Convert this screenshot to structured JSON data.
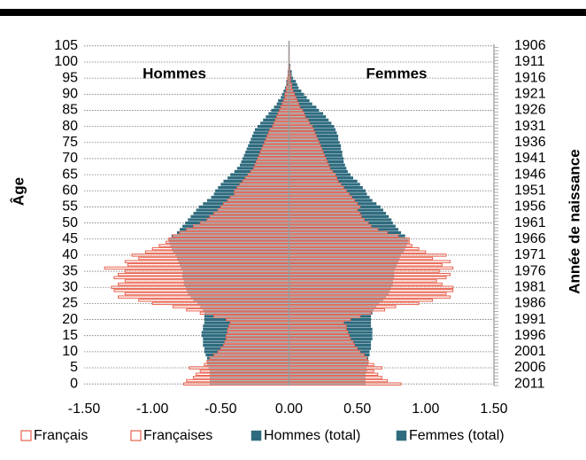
{
  "chart_data": {
    "type": "pyramid",
    "annotations": [
      "Hommes",
      "Femmes"
    ],
    "ylabel": "Âge",
    "y2label": "Année de naissance",
    "categories": [
      "0",
      null,
      null,
      null,
      null,
      "5",
      null,
      null,
      null,
      null,
      "10",
      null,
      null,
      null,
      null,
      "15",
      null,
      null,
      null,
      null,
      "20",
      null,
      null,
      null,
      null,
      "25",
      null,
      null,
      null,
      null,
      "30",
      null,
      null,
      null,
      null,
      "35",
      null,
      null,
      null,
      null,
      "40",
      null,
      null,
      null,
      null,
      "45",
      null,
      null,
      null,
      null,
      "50",
      null,
      null,
      null,
      null,
      "55",
      null,
      null,
      null,
      null,
      "60",
      null,
      null,
      null,
      null,
      "65",
      null,
      null,
      null,
      null,
      "70",
      null,
      null,
      null,
      null,
      "75",
      null,
      null,
      null,
      null,
      "80",
      null,
      null,
      null,
      null,
      "85",
      null,
      null,
      null,
      null,
      "90",
      null,
      null,
      null,
      null,
      "95",
      null,
      null,
      null,
      null,
      "100",
      null,
      null,
      null,
      null,
      "105"
    ],
    "birth_years": [
      "2011",
      null,
      null,
      null,
      null,
      "2006",
      null,
      null,
      null,
      null,
      "2001",
      null,
      null,
      null,
      null,
      "1996",
      null,
      null,
      null,
      null,
      "1991",
      null,
      null,
      null,
      null,
      "1986",
      null,
      null,
      null,
      null,
      "1981",
      null,
      null,
      null,
      null,
      "1976",
      null,
      null,
      null,
      null,
      "1971",
      null,
      null,
      null,
      null,
      "1966",
      null,
      null,
      null,
      null,
      "1961",
      null,
      null,
      null,
      null,
      "1956",
      null,
      null,
      null,
      null,
      "1951",
      null,
      null,
      null,
      null,
      "1946",
      null,
      null,
      null,
      null,
      "1941",
      null,
      null,
      null,
      null,
      "1936",
      null,
      null,
      null,
      null,
      "1931",
      null,
      null,
      null,
      null,
      "1926",
      null,
      null,
      null,
      null,
      "1921",
      null,
      null,
      null,
      null,
      "1916",
      null,
      null,
      null,
      null,
      "1911",
      null,
      null,
      null,
      null,
      "1906"
    ],
    "xlim": [
      -1.5,
      1.5
    ],
    "xticks": [
      {
        "value": -1.5,
        "label": "-1.50"
      },
      {
        "value": -1,
        "label": "-1.00"
      },
      {
        "value": -0.5,
        "label": "-0.50"
      },
      {
        "value": 0,
        "label": "0.00"
      },
      {
        "value": 0.5,
        "label": "0.50"
      },
      {
        "value": 1,
        "label": "1.00"
      },
      {
        "value": 1.5,
        "label": "1.50"
      }
    ],
    "grid": true,
    "legend": "bottom",
    "series": [
      {
        "name": "Français",
        "color": "#e8604c",
        "outline": true,
        "values": [
          -0.77,
          -0.75,
          -0.7,
          -0.68,
          -0.65,
          -0.73,
          -0.62,
          -0.6,
          -0.58,
          -0.55,
          -0.52,
          -0.5,
          -0.48,
          -0.47,
          -0.46,
          -0.46,
          -0.45,
          -0.45,
          -0.44,
          -0.43,
          -0.46,
          -0.55,
          -0.65,
          -0.75,
          -0.85,
          -1.0,
          -1.1,
          -1.25,
          -1.2,
          -1.28,
          -1.3,
          -1.25,
          -1.2,
          -1.28,
          -1.25,
          -1.2,
          -1.35,
          -1.18,
          -1.2,
          -1.1,
          -1.15,
          -1.05,
          -1.0,
          -0.95,
          -0.9,
          -0.88,
          -0.85,
          -0.8,
          -0.75,
          -0.7,
          -0.65,
          -0.6,
          -0.58,
          -0.55,
          -0.52,
          -0.5,
          -0.48,
          -0.45,
          -0.43,
          -0.4,
          -0.4,
          -0.38,
          -0.36,
          -0.34,
          -0.32,
          -0.3,
          -0.28,
          -0.26,
          -0.25,
          -0.24,
          -0.23,
          -0.22,
          -0.21,
          -0.2,
          -0.19,
          -0.18,
          -0.17,
          -0.16,
          -0.15,
          -0.14,
          -0.12,
          -0.11,
          -0.1,
          -0.09,
          -0.08,
          -0.07,
          -0.06,
          -0.05,
          -0.04,
          -0.03,
          -0.03,
          -0.02,
          -0.02,
          -0.01,
          -0.01,
          -0.01,
          -0.005,
          -0.005,
          -0.003,
          -0.002,
          -0.001,
          -0.001,
          -0.001,
          -0.001,
          -0.001,
          -0.001
        ]
      },
      {
        "name": "Françaises",
        "color": "#e8604c",
        "outline": true,
        "values": [
          0.82,
          0.72,
          0.68,
          0.65,
          0.62,
          0.68,
          0.62,
          0.58,
          0.57,
          0.55,
          0.52,
          0.5,
          0.48,
          0.47,
          0.45,
          0.44,
          0.43,
          0.42,
          0.42,
          0.4,
          0.45,
          0.52,
          0.6,
          0.7,
          0.78,
          0.95,
          1.05,
          1.18,
          1.15,
          1.2,
          1.2,
          1.12,
          1.08,
          1.15,
          1.18,
          1.1,
          1.2,
          1.12,
          1.18,
          1.05,
          1.15,
          1.0,
          0.95,
          0.9,
          0.88,
          0.88,
          0.8,
          0.72,
          0.65,
          0.6,
          0.58,
          0.55,
          0.53,
          0.52,
          0.5,
          0.52,
          0.5,
          0.48,
          0.46,
          0.44,
          0.42,
          0.4,
          0.38,
          0.36,
          0.35,
          0.34,
          0.32,
          0.3,
          0.29,
          0.28,
          0.27,
          0.26,
          0.25,
          0.24,
          0.23,
          0.22,
          0.21,
          0.2,
          0.19,
          0.18,
          0.17,
          0.15,
          0.14,
          0.12,
          0.11,
          0.1,
          0.08,
          0.07,
          0.06,
          0.05,
          0.04,
          0.03,
          0.02,
          0.02,
          0.01,
          0.01,
          0.01,
          0.005,
          0.005,
          0.003,
          0.002,
          0.001,
          0.001,
          0.001,
          0.001,
          0.001
        ]
      },
      {
        "name": "Hommes (total)",
        "color": "#2e6b7e",
        "outline": false,
        "values": [
          -0.58,
          -0.58,
          -0.58,
          -0.58,
          -0.58,
          -0.59,
          -0.6,
          -0.6,
          -0.6,
          -0.61,
          -0.62,
          -0.62,
          -0.63,
          -0.63,
          -0.63,
          -0.64,
          -0.64,
          -0.63,
          -0.63,
          -0.62,
          -0.62,
          -0.62,
          -0.62,
          -0.63,
          -0.65,
          -0.67,
          -0.7,
          -0.72,
          -0.74,
          -0.75,
          -0.76,
          -0.77,
          -0.77,
          -0.78,
          -0.78,
          -0.78,
          -0.79,
          -0.8,
          -0.81,
          -0.82,
          -0.83,
          -0.85,
          -0.86,
          -0.87,
          -0.88,
          -0.88,
          -0.86,
          -0.82,
          -0.8,
          -0.78,
          -0.76,
          -0.74,
          -0.72,
          -0.7,
          -0.68,
          -0.66,
          -0.63,
          -0.6,
          -0.57,
          -0.55,
          -0.54,
          -0.52,
          -0.5,
          -0.48,
          -0.45,
          -0.43,
          -0.4,
          -0.38,
          -0.36,
          -0.35,
          -0.34,
          -0.33,
          -0.32,
          -0.31,
          -0.3,
          -0.29,
          -0.28,
          -0.27,
          -0.26,
          -0.25,
          -0.23,
          -0.21,
          -0.19,
          -0.17,
          -0.15,
          -0.13,
          -0.11,
          -0.09,
          -0.08,
          -0.06,
          -0.05,
          -0.04,
          -0.03,
          -0.02,
          -0.02,
          -0.01,
          -0.01,
          -0.01,
          -0.005,
          -0.005,
          -0.003,
          -0.002,
          -0.001,
          -0.001,
          -0.001,
          -0.001
        ]
      },
      {
        "name": "Femmes (total)",
        "color": "#2e6b7e",
        "outline": false,
        "values": [
          0.56,
          0.56,
          0.56,
          0.56,
          0.57,
          0.57,
          0.58,
          0.58,
          0.58,
          0.59,
          0.59,
          0.6,
          0.6,
          0.6,
          0.61,
          0.61,
          0.61,
          0.61,
          0.6,
          0.6,
          0.6,
          0.6,
          0.61,
          0.62,
          0.64,
          0.66,
          0.69,
          0.71,
          0.73,
          0.74,
          0.75,
          0.76,
          0.76,
          0.77,
          0.77,
          0.77,
          0.78,
          0.79,
          0.8,
          0.81,
          0.82,
          0.84,
          0.85,
          0.86,
          0.87,
          0.87,
          0.85,
          0.82,
          0.8,
          0.78,
          0.76,
          0.75,
          0.73,
          0.71,
          0.69,
          0.67,
          0.64,
          0.61,
          0.59,
          0.57,
          0.56,
          0.54,
          0.52,
          0.5,
          0.47,
          0.45,
          0.43,
          0.42,
          0.41,
          0.4,
          0.4,
          0.39,
          0.39,
          0.38,
          0.38,
          0.37,
          0.36,
          0.36,
          0.35,
          0.34,
          0.33,
          0.31,
          0.29,
          0.27,
          0.25,
          0.22,
          0.2,
          0.17,
          0.15,
          0.13,
          0.11,
          0.09,
          0.07,
          0.06,
          0.05,
          0.03,
          0.02,
          0.02,
          0.01,
          0.01,
          0.005,
          0.003,
          0.002,
          0.001,
          0.001,
          0.001
        ]
      }
    ]
  }
}
